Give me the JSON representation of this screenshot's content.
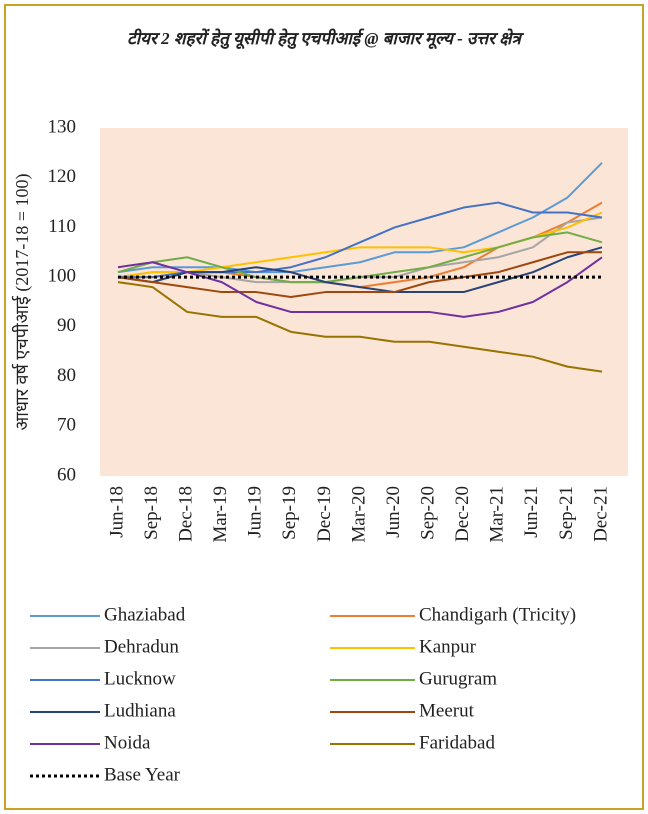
{
  "chart_data": {
    "type": "line",
    "title": "टीयर 2 शहरों हेतु यूसीपी हेतु एचपीआई @ बाजार मूल्य - उत्तर क्षेत्र",
    "y_label": "आधार वर्ष एचपीआई (2017-18 = 100)",
    "categories": [
      "Jun-18",
      "Sep-18",
      "Dec-18",
      "Mar-19",
      "Jun-19",
      "Sep-19",
      "Dec-19",
      "Mar-20",
      "Jun-20",
      "Sep-20",
      "Dec-20",
      "Mar-21",
      "Jun-21",
      "Sep-21",
      "Dec-21"
    ],
    "ylim": [
      60,
      130
    ],
    "yticks": [
      60,
      70,
      80,
      90,
      100,
      110,
      120,
      130
    ],
    "plot_background": "#fbe5d6",
    "border_color": "#c9a227",
    "legend_position": "bottom",
    "series": [
      {
        "name": "Ghaziabad",
        "color": "#5b9bd5",
        "values": [
          101,
          102,
          102,
          102,
          101,
          101,
          102,
          103,
          105,
          105,
          106,
          109,
          112,
          116,
          123
        ]
      },
      {
        "name": "Chandigarh (Tricity)",
        "color": "#ed7d31",
        "values": [
          100,
          100,
          101,
          101,
          100,
          99,
          99,
          98,
          99,
          100,
          102,
          106,
          108,
          111,
          115
        ]
      },
      {
        "name": "Dehradun",
        "color": "#a5a5a5",
        "values": [
          100,
          101,
          101,
          100,
          99,
          99,
          99,
          100,
          100,
          102,
          103,
          104,
          106,
          111,
          112
        ]
      },
      {
        "name": "Kanpur",
        "color": "#ffc000",
        "values": [
          100,
          101,
          101,
          102,
          103,
          104,
          105,
          106,
          106,
          106,
          105,
          106,
          108,
          110,
          113
        ]
      },
      {
        "name": "Lucknow",
        "color": "#4472c4",
        "values": [
          100,
          100,
          101,
          101,
          101,
          102,
          104,
          107,
          110,
          112,
          114,
          115,
          113,
          113,
          112
        ]
      },
      {
        "name": "Gurugram",
        "color": "#70ad47",
        "values": [
          101,
          103,
          104,
          102,
          100,
          99,
          99,
          100,
          101,
          102,
          104,
          106,
          108,
          109,
          107
        ]
      },
      {
        "name": "Ludhiana",
        "color": "#264478",
        "values": [
          100,
          99,
          101,
          101,
          102,
          101,
          99,
          98,
          97,
          97,
          97,
          99,
          101,
          104,
          106
        ]
      },
      {
        "name": "Meerut",
        "color": "#9e480e",
        "values": [
          100,
          99,
          98,
          97,
          97,
          96,
          97,
          97,
          97,
          99,
          100,
          101,
          103,
          105,
          105
        ]
      },
      {
        "name": "Noida",
        "color": "#7030a0",
        "values": [
          102,
          103,
          101,
          99,
          95,
          93,
          93,
          93,
          93,
          93,
          92,
          93,
          95,
          99,
          104
        ]
      },
      {
        "name": "Faridabad",
        "color": "#997300",
        "values": [
          99,
          98,
          93,
          92,
          92,
          89,
          88,
          88,
          87,
          87,
          86,
          85,
          84,
          82,
          81
        ]
      },
      {
        "name": "Base Year",
        "color": "#000000",
        "style": "dotted",
        "values": [
          100,
          100,
          100,
          100,
          100,
          100,
          100,
          100,
          100,
          100,
          100,
          100,
          100,
          100,
          100
        ]
      }
    ]
  }
}
